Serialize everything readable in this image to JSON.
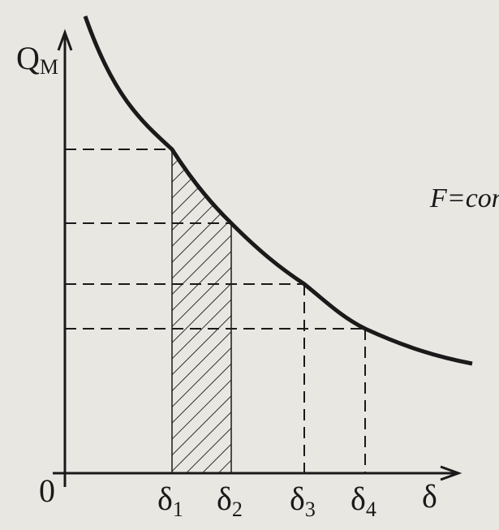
{
  "y_axis": {
    "label": "Q",
    "label_sub": "М"
  },
  "x_axis": {
    "label": "δ",
    "origin": "0"
  },
  "curve_label": "F=const",
  "ticks": [
    {
      "symbol": "δ",
      "sub": "1"
    },
    {
      "symbol": "δ",
      "sub": "2"
    },
    {
      "symbol": "δ",
      "sub": "3"
    },
    {
      "symbol": "δ",
      "sub": "4"
    }
  ]
}
